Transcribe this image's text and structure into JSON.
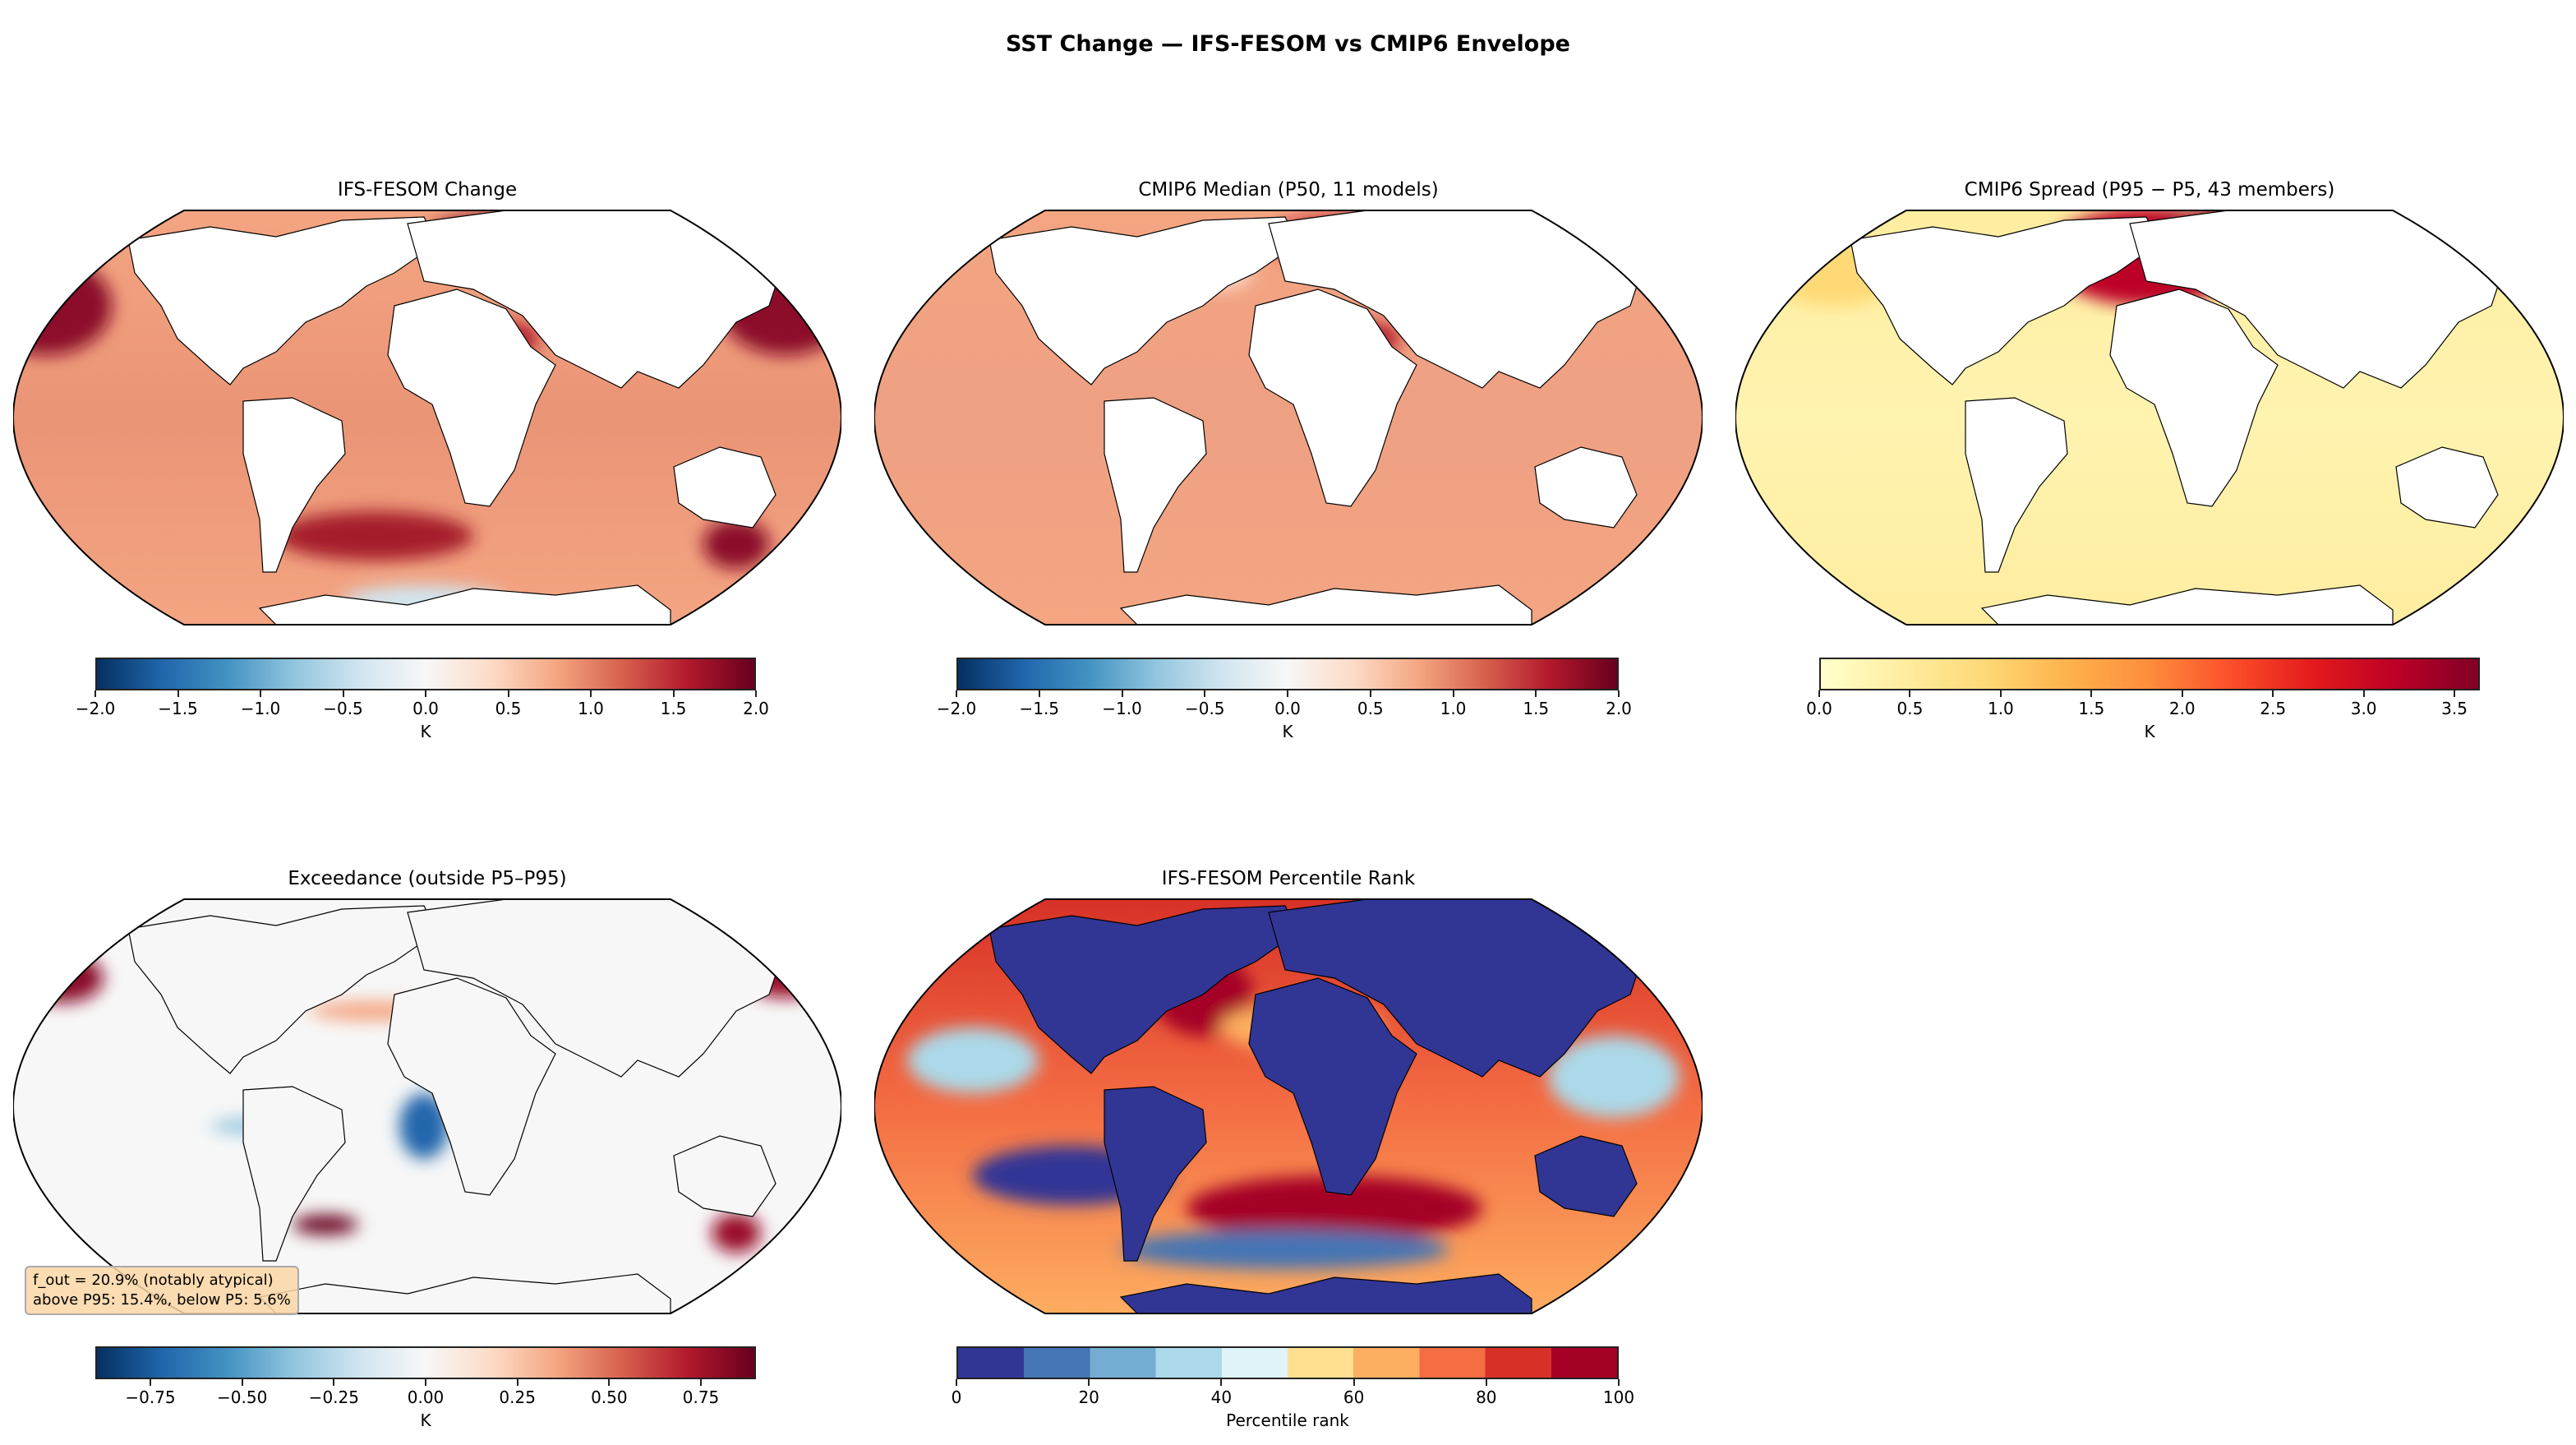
{
  "suptitle": "SST Change — IFS-FESOM vs CMIP6 Envelope",
  "chart_data": [
    {
      "type": "heatmap",
      "title": "IFS-FESOM Change",
      "colormap": "RdBu_r",
      "clim": [
        -2.0,
        2.0
      ],
      "ticks": [
        "−2.0",
        "−1.5",
        "−1.0",
        "−0.5",
        "0.0",
        "0.5",
        "1.0",
        "1.5",
        "2.0"
      ],
      "tick_values": [
        -2,
        -1.5,
        -1,
        -0.5,
        0,
        0.5,
        1,
        1.5,
        2
      ],
      "colorbar_label": "K",
      "projection": "Robinson"
    },
    {
      "type": "heatmap",
      "title": "CMIP6 Median (P50, 11 models)",
      "colormap": "RdBu_r",
      "clim": [
        -2.0,
        2.0
      ],
      "ticks": [
        "−2.0",
        "−1.5",
        "−1.0",
        "−0.5",
        "0.0",
        "0.5",
        "1.0",
        "1.5",
        "2.0"
      ],
      "tick_values": [
        -2,
        -1.5,
        -1,
        -0.5,
        0,
        0.5,
        1,
        1.5,
        2
      ],
      "colorbar_label": "K",
      "projection": "Robinson"
    },
    {
      "type": "heatmap",
      "title": "CMIP6 Spread (P95 − P5, 43 members)",
      "colormap": "YlOrRd",
      "clim": [
        0.0,
        3.64
      ],
      "ticks": [
        "0.0",
        "0.5",
        "1.0",
        "1.5",
        "2.0",
        "2.5",
        "3.0",
        "3.5"
      ],
      "tick_values": [
        0,
        0.5,
        1,
        1.5,
        2,
        2.5,
        3,
        3.5
      ],
      "colorbar_label": "K",
      "projection": "Robinson"
    },
    {
      "type": "heatmap",
      "title": "Exceedance (outside P5–P95)",
      "colormap": "RdBu_r",
      "clim": [
        -0.9,
        0.9
      ],
      "ticks": [
        "−0.75",
        "−0.50",
        "−0.25",
        "0.00",
        "0.25",
        "0.50",
        "0.75"
      ],
      "tick_values": [
        -0.75,
        -0.5,
        -0.25,
        0,
        0.25,
        0.5,
        0.75
      ],
      "colorbar_label": "K",
      "projection": "Robinson",
      "annotation": {
        "line1": "f_out = 20.9% (notably atypical)",
        "line2": "above P95: 15.4%, below P5: 5.6%"
      }
    },
    {
      "type": "heatmap",
      "title": "IFS-FESOM Percentile Rank",
      "colormap": "RdYlBu_r (10 levels)",
      "clim": [
        0,
        100
      ],
      "ticks": [
        "0",
        "20",
        "40",
        "60",
        "80",
        "100"
      ],
      "tick_values": [
        0,
        20,
        40,
        60,
        80,
        100
      ],
      "colorbar_label": "Percentile rank",
      "projection": "Robinson"
    }
  ],
  "colors": {
    "rdbu": [
      "#053061",
      "#2166ac",
      "#4393c3",
      "#92c5de",
      "#d1e5f0",
      "#f7f7f7",
      "#fddbc7",
      "#f4a582",
      "#d6604d",
      "#b2182b",
      "#67001f"
    ],
    "ylorrd": [
      "#ffffcc",
      "#ffeda0",
      "#fed976",
      "#feb24c",
      "#fd8d3c",
      "#fc4e2a",
      "#e31a1c",
      "#bd0026",
      "#800026"
    ],
    "rank": [
      "#313695",
      "#4575b4",
      "#74add1",
      "#abd9e9",
      "#e0f3f8",
      "#fee090",
      "#fdae61",
      "#f46d43",
      "#d73027",
      "#a50026"
    ]
  }
}
